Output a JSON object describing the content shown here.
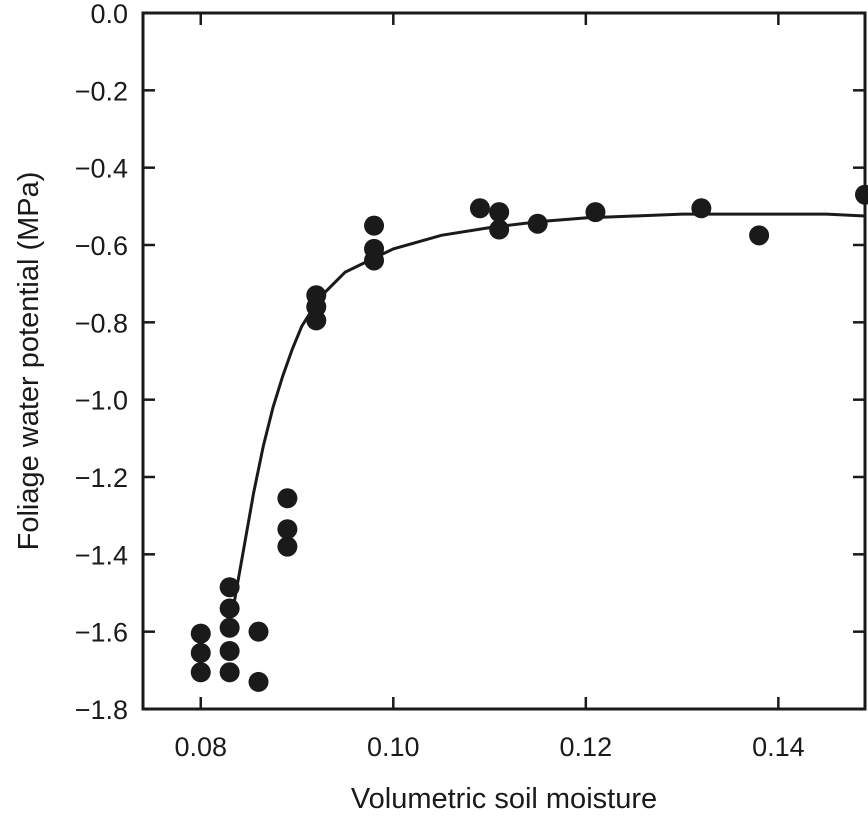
{
  "chart_data": {
    "type": "scatter",
    "title": "",
    "xlabel": "Volumetric soil moisture",
    "ylabel": "Foliage water potential (MPa)",
    "xlim": [
      0.074,
      0.149
    ],
    "ylim": [
      -1.8,
      0.0
    ],
    "grid": false,
    "x_ticks": [
      0.08,
      0.1,
      0.12,
      0.14
    ],
    "x_tick_labels": [
      "0.08",
      "0.10",
      "0.12",
      "0.14"
    ],
    "y_ticks": [
      0.0,
      -0.2,
      -0.4,
      -0.6,
      -0.8,
      -1.0,
      -1.2,
      -1.4,
      -1.6,
      -1.8
    ],
    "y_tick_labels": [
      "0.0",
      "−0.2",
      "−0.4",
      "−0.6",
      "−0.8",
      "−1.0",
      "−1.2",
      "−1.4",
      "−1.6",
      "−1.8"
    ],
    "series": [
      {
        "type": "scatter",
        "x": [
          0.08,
          0.08,
          0.08,
          0.083,
          0.083,
          0.083,
          0.083,
          0.083,
          0.086,
          0.086,
          0.089,
          0.089,
          0.089,
          0.092,
          0.092,
          0.092,
          0.098,
          0.098,
          0.098,
          0.109,
          0.111,
          0.111,
          0.115,
          0.121,
          0.132,
          0.138,
          0.149
        ],
        "y": [
          -1.605,
          -1.655,
          -1.705,
          -1.485,
          -1.54,
          -1.59,
          -1.65,
          -1.705,
          -1.6,
          -1.73,
          -1.255,
          -1.335,
          -1.38,
          -0.73,
          -0.76,
          -0.795,
          -0.55,
          -0.61,
          -0.64,
          -0.505,
          -0.515,
          -0.56,
          -0.545,
          -0.515,
          -0.505,
          -0.575,
          -0.47
        ]
      },
      {
        "type": "line",
        "x": [
          0.0835,
          0.0845,
          0.0855,
          0.0865,
          0.0875,
          0.0885,
          0.0895,
          0.0905,
          0.0915,
          0.093,
          0.095,
          0.0975,
          0.1,
          0.105,
          0.11,
          0.115,
          0.12,
          0.125,
          0.13,
          0.135,
          0.14,
          0.145,
          0.149
        ],
        "y": [
          -1.52,
          -1.38,
          -1.24,
          -1.12,
          -1.02,
          -0.94,
          -0.87,
          -0.81,
          -0.77,
          -0.72,
          -0.67,
          -0.64,
          -0.61,
          -0.575,
          -0.555,
          -0.54,
          -0.53,
          -0.525,
          -0.52,
          -0.52,
          -0.52,
          -0.52,
          -0.525
        ]
      }
    ]
  }
}
